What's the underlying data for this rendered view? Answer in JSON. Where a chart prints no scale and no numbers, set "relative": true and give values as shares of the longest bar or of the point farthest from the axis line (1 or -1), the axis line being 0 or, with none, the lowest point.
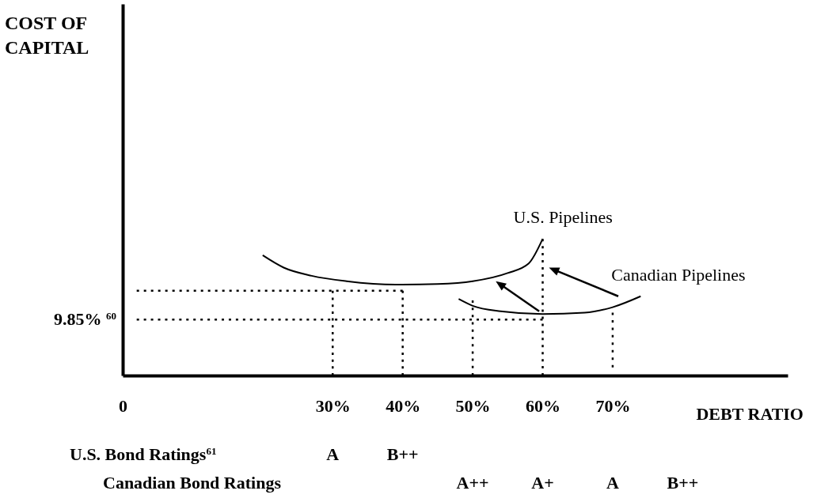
{
  "chart_data": {
    "type": "line",
    "relative": true,
    "xlabel": "DEBT RATIO",
    "xlim": [
      0,
      95
    ],
    "xticks": [
      0,
      {
        "value": 30,
        "label": "30%"
      },
      {
        "value": 40,
        "label": "40%"
      },
      {
        "value": 50,
        "label": "50%"
      },
      {
        "value": 60,
        "label": "60%"
      },
      {
        "value": 70,
        "label": "70%"
      }
    ],
    "series": [
      {
        "name": "U.S. Pipelines",
        "color": "#000000",
        "x": [
          20,
          23,
          27,
          32,
          39,
          45,
          50,
          55,
          58,
          60
        ],
        "values": [
          0.88,
          0.79,
          0.73,
          0.69,
          0.665,
          0.67,
          0.69,
          0.75,
          0.82,
          1.0
        ]
      },
      {
        "name": "Canadian Pipelines",
        "color": "#000000",
        "x": [
          48,
          50,
          54,
          60,
          66,
          70,
          74
        ],
        "values": [
          0.56,
          0.51,
          0.47,
          0.45,
          0.46,
          0.5,
          0.58
        ]
      },
      {
        "color": "#000000",
        "line_style": "dotted",
        "x": [
          2,
          40
        ],
        "values": [
          0.62,
          0.62
        ]
      },
      {
        "color": "#000000",
        "line_style": "dotted",
        "x": [
          2,
          60
        ],
        "values": [
          0.41,
          0.41
        ]
      },
      {
        "color": "#000000",
        "line_style": "dotted",
        "x": [
          30,
          30
        ],
        "values": [
          0.62,
          0
        ]
      },
      {
        "color": "#000000",
        "line_style": "dotted",
        "x": [
          40,
          40
        ],
        "values": [
          0.62,
          0
        ]
      },
      {
        "color": "#000000",
        "line_style": "dotted",
        "x": [
          50,
          50
        ],
        "values": [
          0.55,
          0
        ]
      },
      {
        "color": "#000000",
        "line_style": "dotted",
        "x": [
          60,
          60
        ],
        "values": [
          1.0,
          0
        ]
      },
      {
        "color": "#000000",
        "line_style": "dotted",
        "x": [
          70,
          70
        ],
        "values": [
          0.46,
          0.06
        ]
      }
    ],
    "annotations": [
      "COST OF CAPITAL",
      "9.85% $^{60}$",
      "U.S. Bond Ratings$^{61}$",
      "A",
      "B++",
      "Canadian Bond Ratings",
      "A++",
      "A+",
      "A",
      "B++"
    ]
  }
}
